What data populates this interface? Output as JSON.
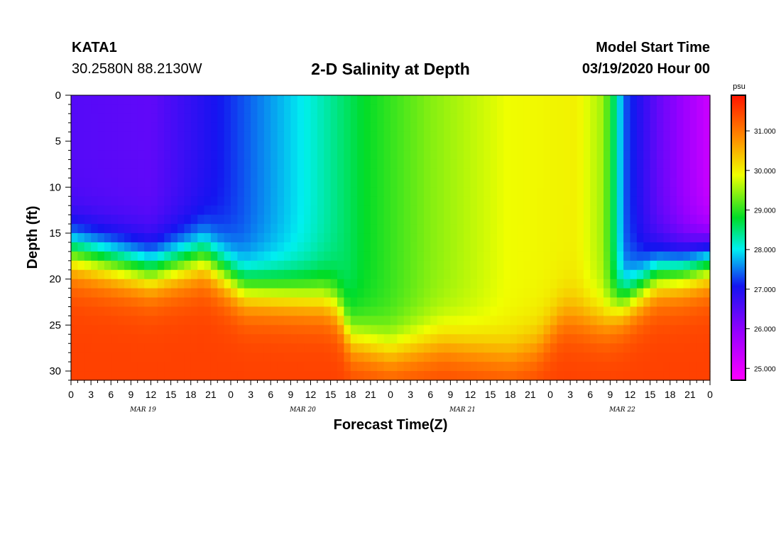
{
  "header": {
    "station": "KATA1",
    "coords": "30.2580N 88.2130W",
    "title": "2-D Salinity at Depth",
    "model_start_label": "Model Start Time",
    "model_start_value": "03/19/2020 Hour 00"
  },
  "chart_data": {
    "type": "heatmap",
    "title": "2-D Salinity at Depth",
    "xlabel": "Forecast Time(Z)",
    "ylabel": "Depth (ft)",
    "x_range_hours": [
      0,
      96
    ],
    "y_range_ft": [
      0,
      31
    ],
    "y_inverted": true,
    "y_ticks": [
      0,
      5,
      10,
      15,
      20,
      25,
      30
    ],
    "x_tick_labels": [
      "0",
      "3",
      "6",
      "9",
      "12",
      "15",
      "18",
      "21",
      "0",
      "3",
      "6",
      "9",
      "12",
      "15",
      "18",
      "21",
      "0",
      "3",
      "6",
      "9",
      "12",
      "15",
      "18",
      "21",
      "0",
      "3",
      "6",
      "9",
      "12",
      "15",
      "18",
      "21",
      "0"
    ],
    "day_labels": [
      "MAR 19",
      "MAR 20",
      "MAR 21",
      "MAR 22"
    ],
    "colorbar": {
      "unit": "psu",
      "range": [
        24.7,
        31.9
      ],
      "tick_labels": [
        "25.000",
        "26.000",
        "27.000",
        "28.000",
        "29.000",
        "30.000",
        "31.000"
      ],
      "tick_values": [
        25,
        26,
        27,
        28,
        29,
        30,
        31
      ]
    },
    "surface_salinity_by_hour": [
      [
        0,
        26.5
      ],
      [
        12,
        26.4
      ],
      [
        24,
        27.2
      ],
      [
        36,
        28.1
      ],
      [
        44,
        28.8
      ],
      [
        54,
        29.4
      ],
      [
        66,
        29.9
      ],
      [
        76,
        30.0
      ],
      [
        80,
        29.5
      ],
      [
        82,
        28.3
      ],
      [
        83,
        27.4
      ],
      [
        88,
        26.4
      ],
      [
        96,
        25.3
      ]
    ],
    "halocline_depth_ft_by_hour": [
      [
        0,
        17
      ],
      [
        6,
        18
      ],
      [
        12,
        19
      ],
      [
        20,
        17.5
      ],
      [
        26,
        21
      ],
      [
        38,
        22
      ],
      [
        40,
        23
      ],
      [
        42,
        26.5
      ],
      [
        48,
        28
      ],
      [
        56,
        27
      ],
      [
        66,
        28.5
      ],
      [
        70,
        27.5
      ],
      [
        74,
        24
      ],
      [
        80,
        24.5
      ],
      [
        84,
        22
      ],
      [
        88,
        19.5
      ],
      [
        92,
        19
      ],
      [
        96,
        18
      ]
    ],
    "bottom_salinity_psu": 31.5
  }
}
